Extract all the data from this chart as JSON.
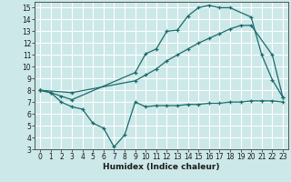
{
  "xlabel": "Humidex (Indice chaleur)",
  "bg_color": "#cce8e8",
  "grid_color": "#ffffff",
  "line_color": "#1a6b6b",
  "xlim": [
    -0.5,
    23.5
  ],
  "ylim": [
    3,
    15.5
  ],
  "xticks": [
    0,
    1,
    2,
    3,
    4,
    5,
    6,
    7,
    8,
    9,
    10,
    11,
    12,
    13,
    14,
    15,
    16,
    17,
    18,
    19,
    20,
    21,
    22,
    23
  ],
  "yticks": [
    3,
    4,
    5,
    6,
    7,
    8,
    9,
    10,
    11,
    12,
    13,
    14,
    15
  ],
  "line1_x": [
    0,
    1,
    2,
    3,
    9,
    10,
    11,
    12,
    13,
    14,
    15,
    16,
    17,
    18,
    20,
    21,
    22,
    23
  ],
  "line1_y": [
    8.0,
    7.8,
    7.5,
    7.2,
    9.5,
    11.1,
    11.5,
    13.0,
    13.1,
    14.3,
    15.0,
    15.2,
    15.0,
    15.0,
    14.2,
    11.0,
    8.9,
    7.4
  ],
  "line2_x": [
    0,
    3,
    9,
    10,
    11,
    12,
    13,
    14,
    15,
    16,
    17,
    18,
    19,
    20,
    22,
    23
  ],
  "line2_y": [
    8.0,
    7.8,
    8.8,
    9.3,
    9.8,
    10.5,
    11.0,
    11.5,
    12.0,
    12.4,
    12.8,
    13.2,
    13.5,
    13.5,
    11.0,
    7.4
  ],
  "line3_x": [
    0,
    1,
    2,
    3,
    4,
    5,
    6,
    7,
    8,
    9,
    10,
    11,
    12,
    13,
    14,
    15,
    16,
    17,
    18,
    19,
    20,
    21,
    22,
    23
  ],
  "line3_y": [
    8.0,
    7.8,
    7.0,
    6.6,
    6.4,
    5.2,
    4.8,
    3.2,
    4.2,
    7.0,
    6.6,
    6.7,
    6.7,
    6.7,
    6.8,
    6.8,
    6.9,
    6.9,
    7.0,
    7.0,
    7.1,
    7.1,
    7.1,
    7.0
  ],
  "tick_fontsize": 5.5,
  "xlabel_fontsize": 6.5
}
